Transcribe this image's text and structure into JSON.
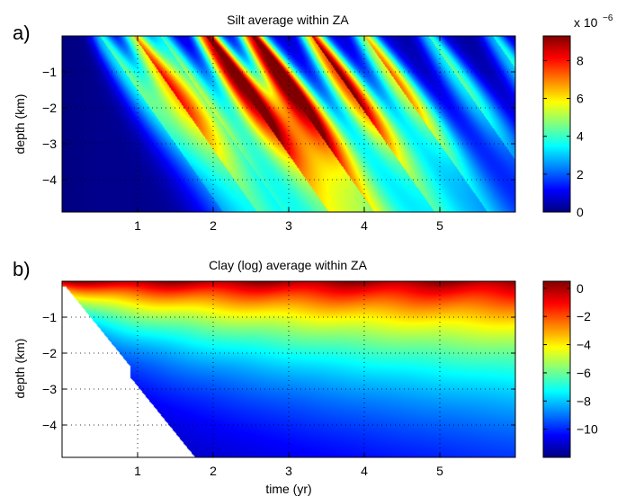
{
  "chart_data": [
    {
      "type": "heatmap",
      "panel_label": "a)",
      "title": "Silt average within ZA",
      "xlabel": "",
      "ylabel": "depth (km)",
      "x_ticks": [
        1,
        2,
        3,
        4,
        5
      ],
      "y_ticks": [
        -1,
        -2,
        -3,
        -4
      ],
      "xlim": [
        0,
        6
      ],
      "ylim": [
        -4.9,
        0
      ],
      "grid": true,
      "colorbar": {
        "ticks": [
          0,
          2,
          4,
          6,
          8
        ],
        "range": [
          0,
          9.3
        ],
        "multiplier": "x 10",
        "exponent": "−6"
      },
      "plumes": [
        {
          "t": 0.5,
          "peak": 3.2,
          "decay": 1.1
        },
        {
          "t": 0.95,
          "peak": 5.6,
          "decay": 1.15
        },
        {
          "t": 1.3,
          "peak": 3.0,
          "decay": 1.1
        },
        {
          "t": 1.9,
          "peak": 9.0,
          "decay": 1.2
        },
        {
          "t": 2.5,
          "peak": 9.2,
          "decay": 1.25
        },
        {
          "t": 3.3,
          "peak": 7.2,
          "decay": 1.15
        },
        {
          "t": 4.0,
          "peak": 5.2,
          "decay": 1.1
        },
        {
          "t": 4.85,
          "peak": 3.2,
          "decay": 1.0
        },
        {
          "t": 5.7,
          "peak": 2.8,
          "decay": 0.9
        }
      ]
    },
    {
      "type": "heatmap",
      "panel_label": "b)",
      "title": "Clay (log) average within ZA",
      "xlabel": "time (yr)",
      "ylabel": "depth (km)",
      "x_ticks": [
        1,
        2,
        3,
        4,
        5
      ],
      "y_ticks": [
        -1,
        -2,
        -3,
        -4
      ],
      "xlim": [
        0,
        6
      ],
      "ylim": [
        -4.9,
        0
      ],
      "grid": true,
      "colorbar": {
        "ticks": [
          0,
          -2,
          -4,
          -6,
          -8,
          -10
        ],
        "range": [
          -12,
          0.5
        ]
      }
    }
  ]
}
